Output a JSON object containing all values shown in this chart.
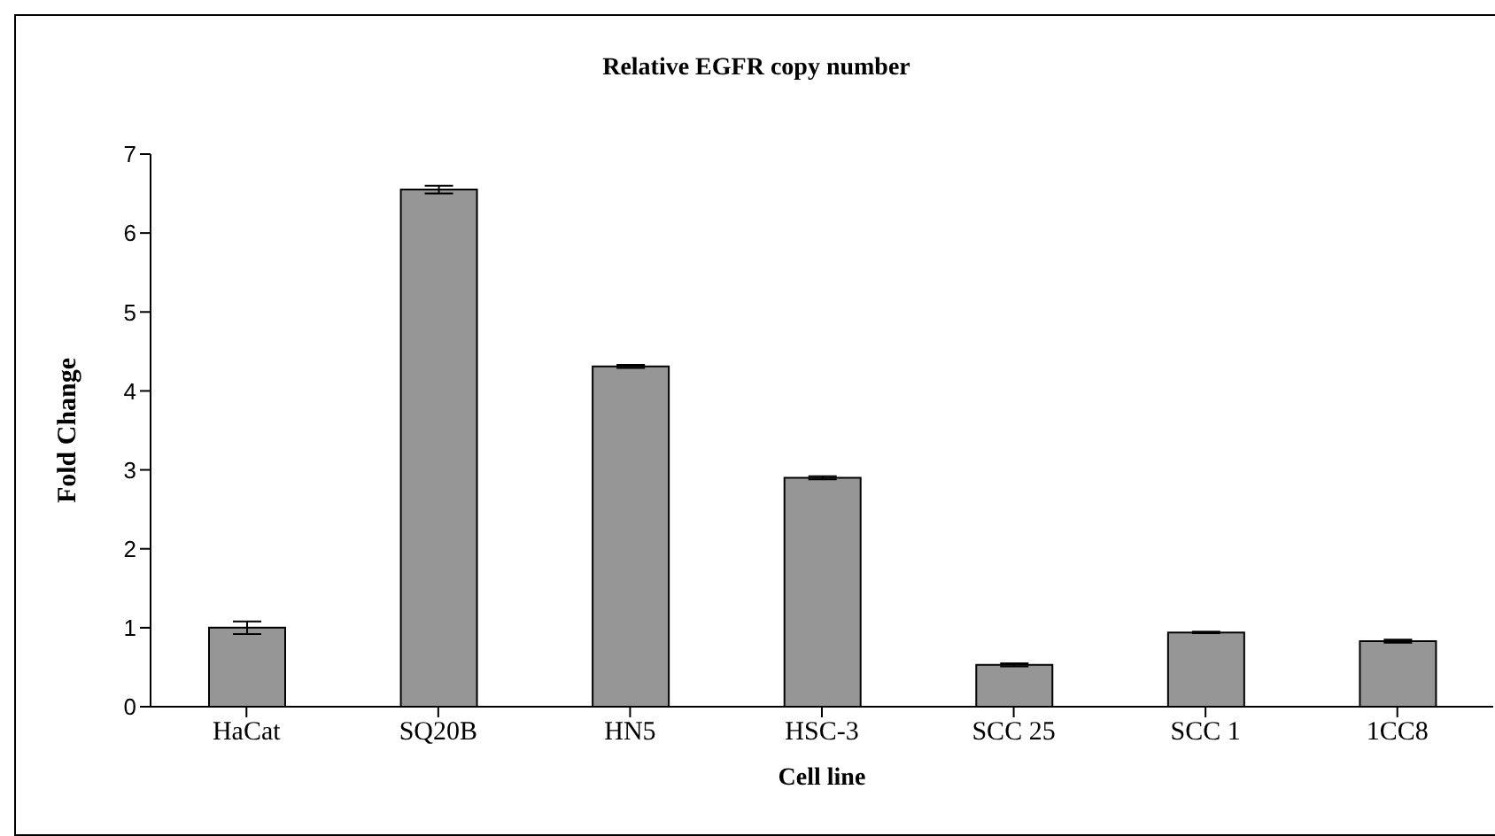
{
  "chart_data": {
    "type": "bar",
    "title": "Relative EGFR copy number",
    "xlabel": "Cell line",
    "ylabel": "Fold Change",
    "categories": [
      "HaCat",
      "SQ20B",
      "HN5",
      "HSC-3",
      "SCC 25",
      "SCC 1",
      "1CC8"
    ],
    "values": [
      1.0,
      6.55,
      4.31,
      2.9,
      0.53,
      0.94,
      0.83
    ],
    "errors": [
      0.08,
      0.05,
      0.02,
      0.02,
      0.02,
      0.01,
      0.02
    ],
    "color": "#969696",
    "ylim": [
      0,
      7
    ],
    "yticks": [
      0,
      1,
      2,
      3,
      4,
      5,
      6,
      7
    ],
    "grid": false,
    "legend": false
  }
}
